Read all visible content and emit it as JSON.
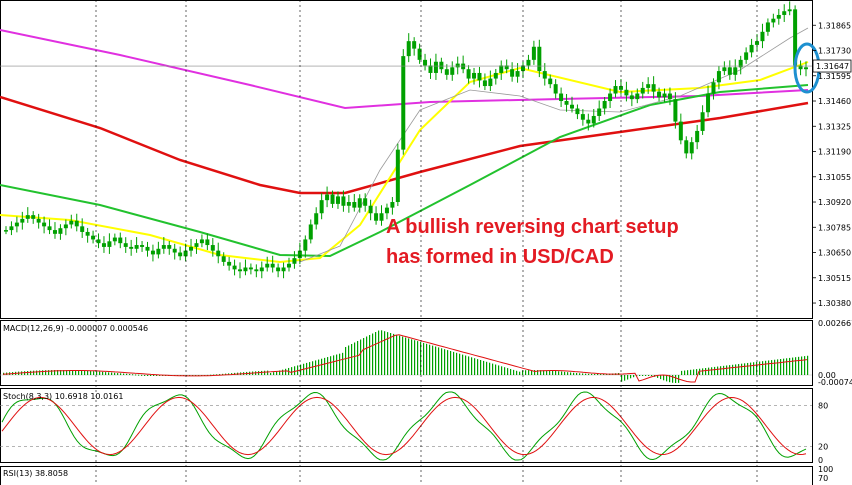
{
  "chart_data": [
    {
      "type": "candlestick",
      "panel": "price",
      "symbol": "USD/CAD",
      "ylim": [
        1.303,
        1.32
      ],
      "yticks": [
        "1.31865",
        "1.31730",
        "1.31595",
        "1.31460",
        "1.31325",
        "1.31190",
        "1.31055",
        "1.30920",
        "1.30785",
        "1.30650",
        "1.30515",
        "1.30380"
      ],
      "last_price": "1.31647",
      "annotation": [
        "A bullish reversing chart setup",
        "has formed in USD/CAD"
      ],
      "close_series": [
        1.3077,
        1.3079,
        1.3081,
        1.3083,
        1.3085,
        1.3083,
        1.3081,
        1.3079,
        1.3077,
        1.3075,
        1.3078,
        1.308,
        1.3082,
        1.3079,
        1.3076,
        1.3074,
        1.3072,
        1.307,
        1.3068,
        1.3071,
        1.3073,
        1.307,
        1.3068,
        1.3067,
        1.3069,
        1.3068,
        1.3066,
        1.3064,
        1.3067,
        1.3069,
        1.3067,
        1.3065,
        1.3063,
        1.3066,
        1.3068,
        1.307,
        1.3072,
        1.3069,
        1.3066,
        1.3063,
        1.306,
        1.3058,
        1.3056,
        1.3055,
        1.3057,
        1.3056,
        1.3055,
        1.3057,
        1.3059,
        1.3057,
        1.3055,
        1.3057,
        1.3059,
        1.3062,
        1.3066,
        1.3072,
        1.308,
        1.3086,
        1.3093,
        1.3096,
        1.3091,
        1.3095,
        1.309,
        1.3092,
        1.3089,
        1.3094,
        1.309,
        1.3086,
        1.3082,
        1.3086,
        1.3089,
        1.3092,
        1.312,
        1.317,
        1.3178,
        1.3174,
        1.3168,
        1.3165,
        1.3161,
        1.3167,
        1.3163,
        1.316,
        1.3164,
        1.3166,
        1.3163,
        1.3158,
        1.3161,
        1.3157,
        1.3154,
        1.3158,
        1.3161,
        1.3165,
        1.3163,
        1.3159,
        1.3162,
        1.3165,
        1.3168,
        1.3175,
        1.3162,
        1.3158,
        1.3155,
        1.315,
        1.3146,
        1.3144,
        1.3142,
        1.3139,
        1.3136,
        1.3134,
        1.3138,
        1.3142,
        1.3146,
        1.315,
        1.3154,
        1.3152,
        1.3149,
        1.3147,
        1.315,
        1.3153,
        1.3155,
        1.3151,
        1.3148,
        1.315,
        1.3147,
        1.3135,
        1.3125,
        1.3118,
        1.3124,
        1.313,
        1.314,
        1.315,
        1.3156,
        1.3162,
        1.3164,
        1.316,
        1.3164,
        1.3168,
        1.3172,
        1.3176,
        1.3178,
        1.3183,
        1.3188,
        1.319,
        1.3192,
        1.3194,
        1.3195,
        1.3165,
        1.3163,
        1.3164
      ]
    },
    {
      "type": "line",
      "panel": "macd",
      "label": "MACD(12,26,9) -0.000007 0.000546",
      "yticks": [
        "0.002667",
        "0.00",
        "-0.000742"
      ]
    },
    {
      "type": "line",
      "panel": "stochastic",
      "label": "Stoch(8,3,3) 10.6918 10.0161",
      "yticks": [
        "80",
        "20",
        "0"
      ]
    },
    {
      "type": "line",
      "panel": "rsi",
      "label": "RSI(13) 38.8058",
      "yticks": [
        "100",
        "70"
      ]
    }
  ],
  "colors": {
    "bull_candle": "#00a000",
    "ma_yellow": "#ffff00",
    "ma_green": "#22c22e",
    "ma_red": "#e01010",
    "ma_magenta": "#e030e0",
    "signal_red": "#e01010",
    "annotation": "#e31b23",
    "highlight_ellipse": "#1e90d0"
  }
}
